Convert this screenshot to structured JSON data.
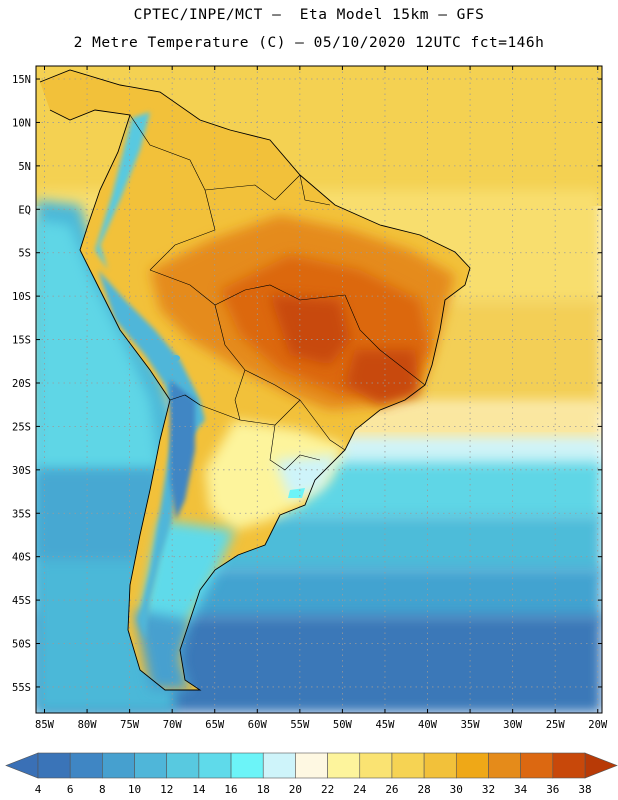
{
  "header": {
    "title_line1": "CPTEC/INPE/MCT –  Eta Model 15km – GFS",
    "title_line2": "2 Metre Temperature (C) – 05/10/2020 12UTC fct=146h"
  },
  "axes": {
    "lat_labels": [
      "15N",
      "10N",
      "5N",
      "EQ",
      "5S",
      "10S",
      "15S",
      "20S",
      "25S",
      "30S",
      "35S",
      "40S",
      "45S",
      "50S",
      "55S"
    ],
    "lat_values": [
      15,
      10,
      5,
      0,
      -5,
      -10,
      -15,
      -20,
      -25,
      -30,
      -35,
      -40,
      -45,
      -50,
      -55
    ],
    "lon_labels": [
      "85W",
      "80W",
      "75W",
      "70W",
      "65W",
      "60W",
      "55W",
      "50W",
      "45W",
      "40W",
      "35W",
      "30W",
      "25W",
      "20W"
    ],
    "lon_values": [
      -85,
      -80,
      -75,
      -70,
      -65,
      -60,
      -55,
      -50,
      -45,
      -40,
      -35,
      -30,
      -25,
      -20
    ],
    "lat_range": [
      -58,
      16.5
    ],
    "lon_range": [
      -86,
      -19.5
    ]
  },
  "colorbar": {
    "labels": [
      "4",
      "6",
      "8",
      "10",
      "12",
      "14",
      "16",
      "18",
      "20",
      "22",
      "24",
      "26",
      "28",
      "30",
      "32",
      "34",
      "36",
      "38"
    ],
    "under_color": "#3a70b6",
    "over_color": "#b83a06",
    "colors": [
      "#3a74b8",
      "#3f86c4",
      "#46a0cf",
      "#4fb6d9",
      "#58c9e0",
      "#5fdaea",
      "#6cf4f8",
      "#cef4fa",
      "#fef8e2",
      "#fdf49c",
      "#fae372",
      "#f6d353",
      "#f2c13a",
      "#efa817",
      "#e58b1a",
      "#dc6811",
      "#c8480a"
    ]
  }
}
